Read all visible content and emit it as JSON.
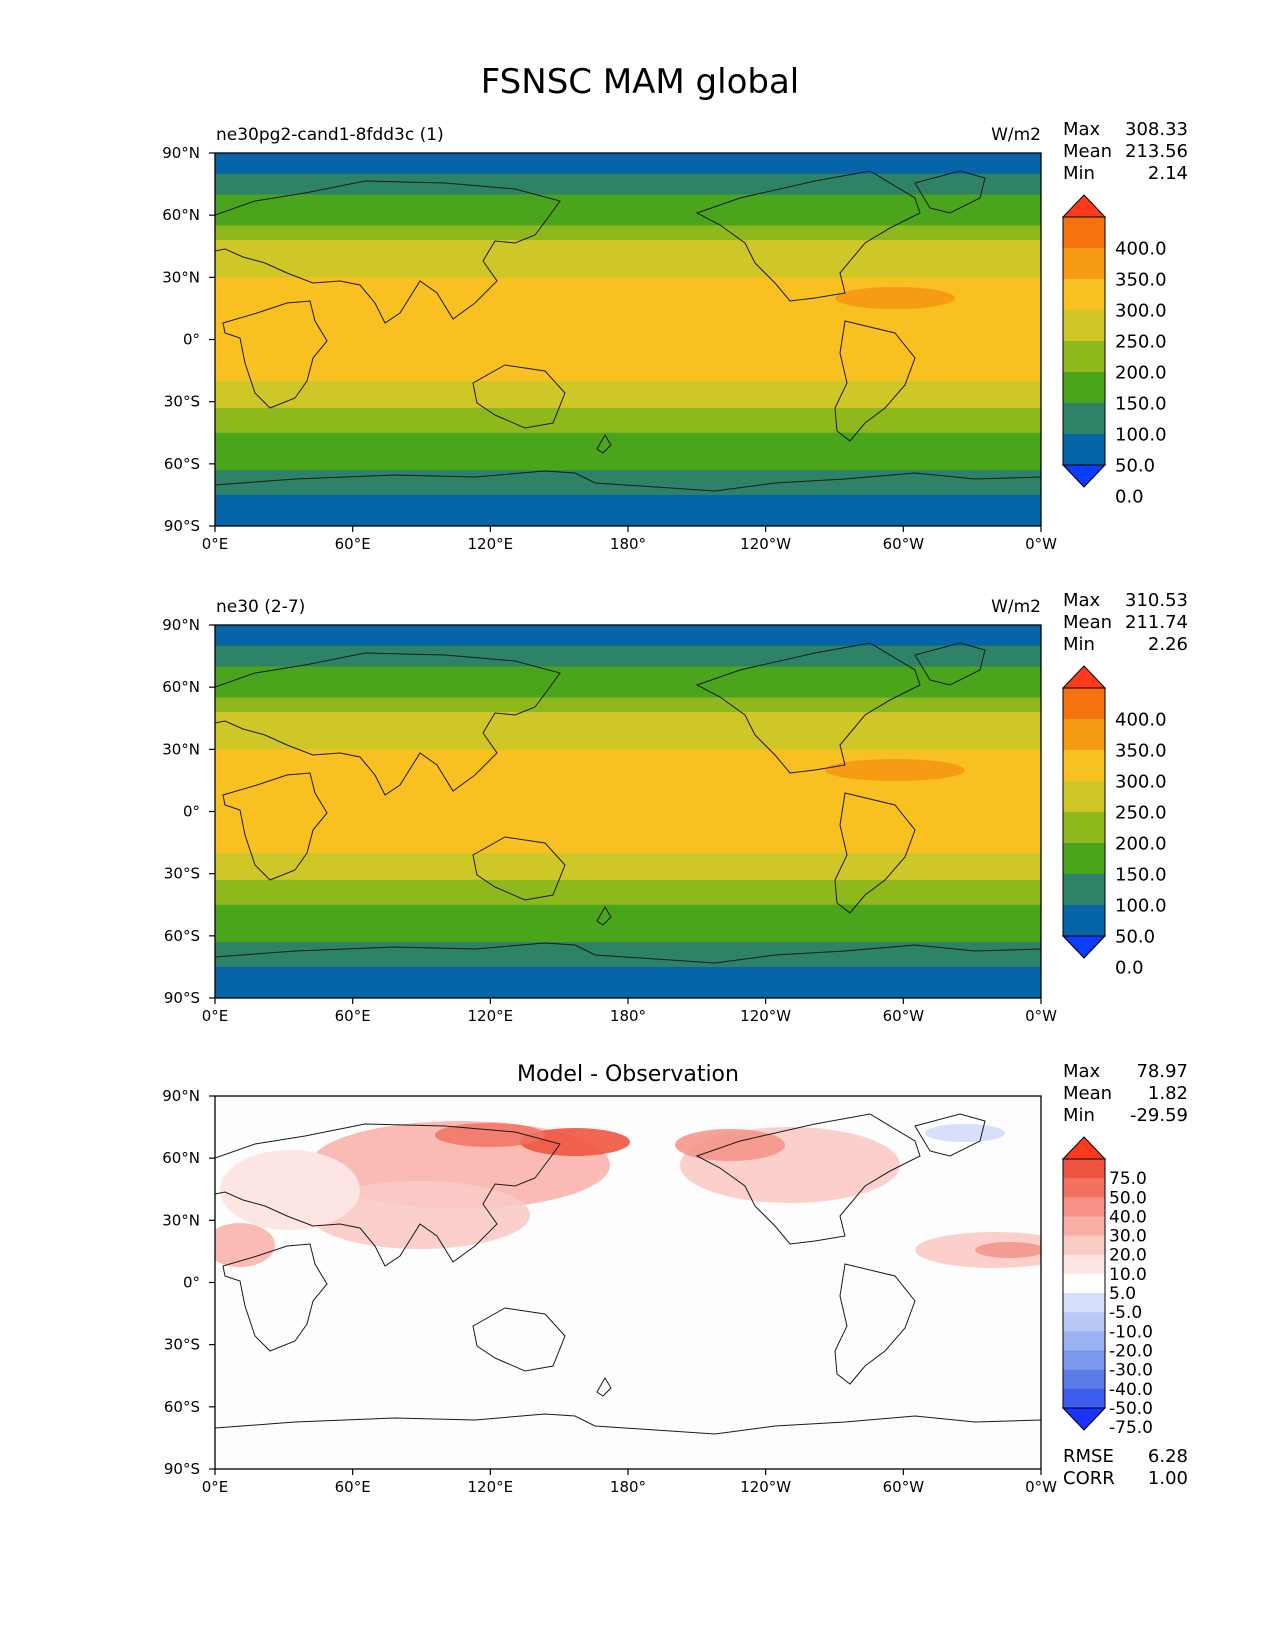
{
  "figure": {
    "title": "FSNSC MAM global"
  },
  "colors": {
    "ocean_deep": "#0565a6",
    "main_levels": [
      "#0b3cff",
      "#0565a6",
      "#2e8268",
      "#4aa41c",
      "#8fb81c",
      "#cfc628",
      "#f8c020",
      "#f79a14",
      "#f5720f",
      "#ff3a1a"
    ],
    "diff_levels": [
      "#1a33ff",
      "#3d5cf0",
      "#5b7be8",
      "#7b98ec",
      "#9bb2f0",
      "#b9c8f4",
      "#d7e0fa",
      "#ffffff",
      "#fde5e3",
      "#fbcbc6",
      "#f8afa6",
      "#f59285",
      "#f27262",
      "#ee5540",
      "#ff3a1a"
    ]
  },
  "x_ticks": [
    "0°E",
    "60°E",
    "120°E",
    "180°",
    "120°W",
    "60°W",
    "0°W"
  ],
  "y_ticks": [
    "90°N",
    "60°N",
    "30°N",
    "0°",
    "30°S",
    "60°S",
    "90°S"
  ],
  "panels": [
    {
      "name": "ne30pg2-cand1-8fdd3c (1)",
      "units": "W/m2",
      "stats": {
        "max_label": "Max",
        "max": "308.33",
        "mean_label": "Mean",
        "mean": "213.56",
        "min_label": "Min",
        "min": "2.14"
      },
      "colorbar": {
        "ticks": [
          "400.0",
          "350.0",
          "300.0",
          "250.0",
          "200.0",
          "150.0",
          "100.0",
          "50.0",
          "0.0"
        ]
      }
    },
    {
      "name": "ne30 (2-7)",
      "units": "W/m2",
      "stats": {
        "max_label": "Max",
        "max": "310.53",
        "mean_label": "Mean",
        "mean": "211.74",
        "min_label": "Min",
        "min": "2.26"
      },
      "colorbar": {
        "ticks": [
          "400.0",
          "350.0",
          "300.0",
          "250.0",
          "200.0",
          "150.0",
          "100.0",
          "50.0",
          "0.0"
        ]
      }
    },
    {
      "name": "Model - Observation",
      "units": "",
      "stats": {
        "max_label": "Max",
        "max": "78.97",
        "mean_label": "Mean",
        "mean": "1.82",
        "min_label": "Min",
        "min": "-29.59",
        "rmse_label": "RMSE",
        "rmse": "6.28",
        "corr_label": "CORR",
        "corr": "1.00"
      },
      "colorbar": {
        "ticks": [
          "75.0",
          "50.0",
          "40.0",
          "30.0",
          "20.0",
          "10.0",
          "5.0",
          "-5.0",
          "-10.0",
          "-20.0",
          "-30.0",
          "-40.0",
          "-50.0",
          "-75.0"
        ]
      }
    }
  ],
  "chart_data": [
    {
      "type": "heatmap",
      "title": "ne30pg2-cand1-8fdd3c (1)",
      "variable": "FSNSC",
      "season": "MAM",
      "units": "W/m2",
      "x_range": [
        0,
        360
      ],
      "y_range": [
        -90,
        90
      ],
      "zonal_profile": {
        "lat": [
          90,
          80,
          70,
          62,
          55,
          48,
          40,
          30,
          20,
          0,
          -20,
          -28,
          -33,
          -38,
          -45,
          -52,
          -58,
          -63,
          -68,
          -75,
          -90
        ],
        "value": [
          30,
          60,
          110,
          130,
          160,
          200,
          235,
          260,
          275,
          275,
          265,
          230,
          200,
          175,
          155,
          140,
          120,
          100,
          70,
          30,
          20
        ]
      },
      "levels": [
        0,
        50,
        100,
        150,
        200,
        250,
        300,
        350,
        400
      ],
      "stats": {
        "max": 308.33,
        "mean": 213.56,
        "min": 2.14
      }
    },
    {
      "type": "heatmap",
      "title": "ne30 (2-7)",
      "variable": "FSNSC",
      "season": "MAM",
      "units": "W/m2",
      "x_range": [
        0,
        360
      ],
      "y_range": [
        -90,
        90
      ],
      "zonal_profile": {
        "lat": [
          90,
          80,
          70,
          62,
          55,
          48,
          40,
          30,
          20,
          0,
          -20,
          -28,
          -33,
          -38,
          -45,
          -52,
          -58,
          -63,
          -68,
          -75,
          -90
        ],
        "value": [
          30,
          60,
          110,
          130,
          160,
          200,
          235,
          260,
          275,
          275,
          265,
          230,
          200,
          175,
          155,
          140,
          120,
          100,
          70,
          30,
          20
        ]
      },
      "levels": [
        0,
        50,
        100,
        150,
        200,
        250,
        300,
        350,
        400
      ],
      "stats": {
        "max": 310.53,
        "mean": 211.74,
        "min": 2.26
      }
    },
    {
      "type": "heatmap",
      "title": "Model - Observation",
      "variable": "FSNSC",
      "season": "MAM",
      "x_range": [
        0,
        360
      ],
      "y_range": [
        -90,
        90
      ],
      "levels": [
        -75,
        -50,
        -40,
        -30,
        -20,
        -10,
        -5,
        5,
        10,
        20,
        30,
        40,
        50,
        75
      ],
      "stats": {
        "max": 78.97,
        "mean": 1.82,
        "min": -29.59,
        "rmse": 6.28,
        "corr": 1.0
      }
    }
  ]
}
